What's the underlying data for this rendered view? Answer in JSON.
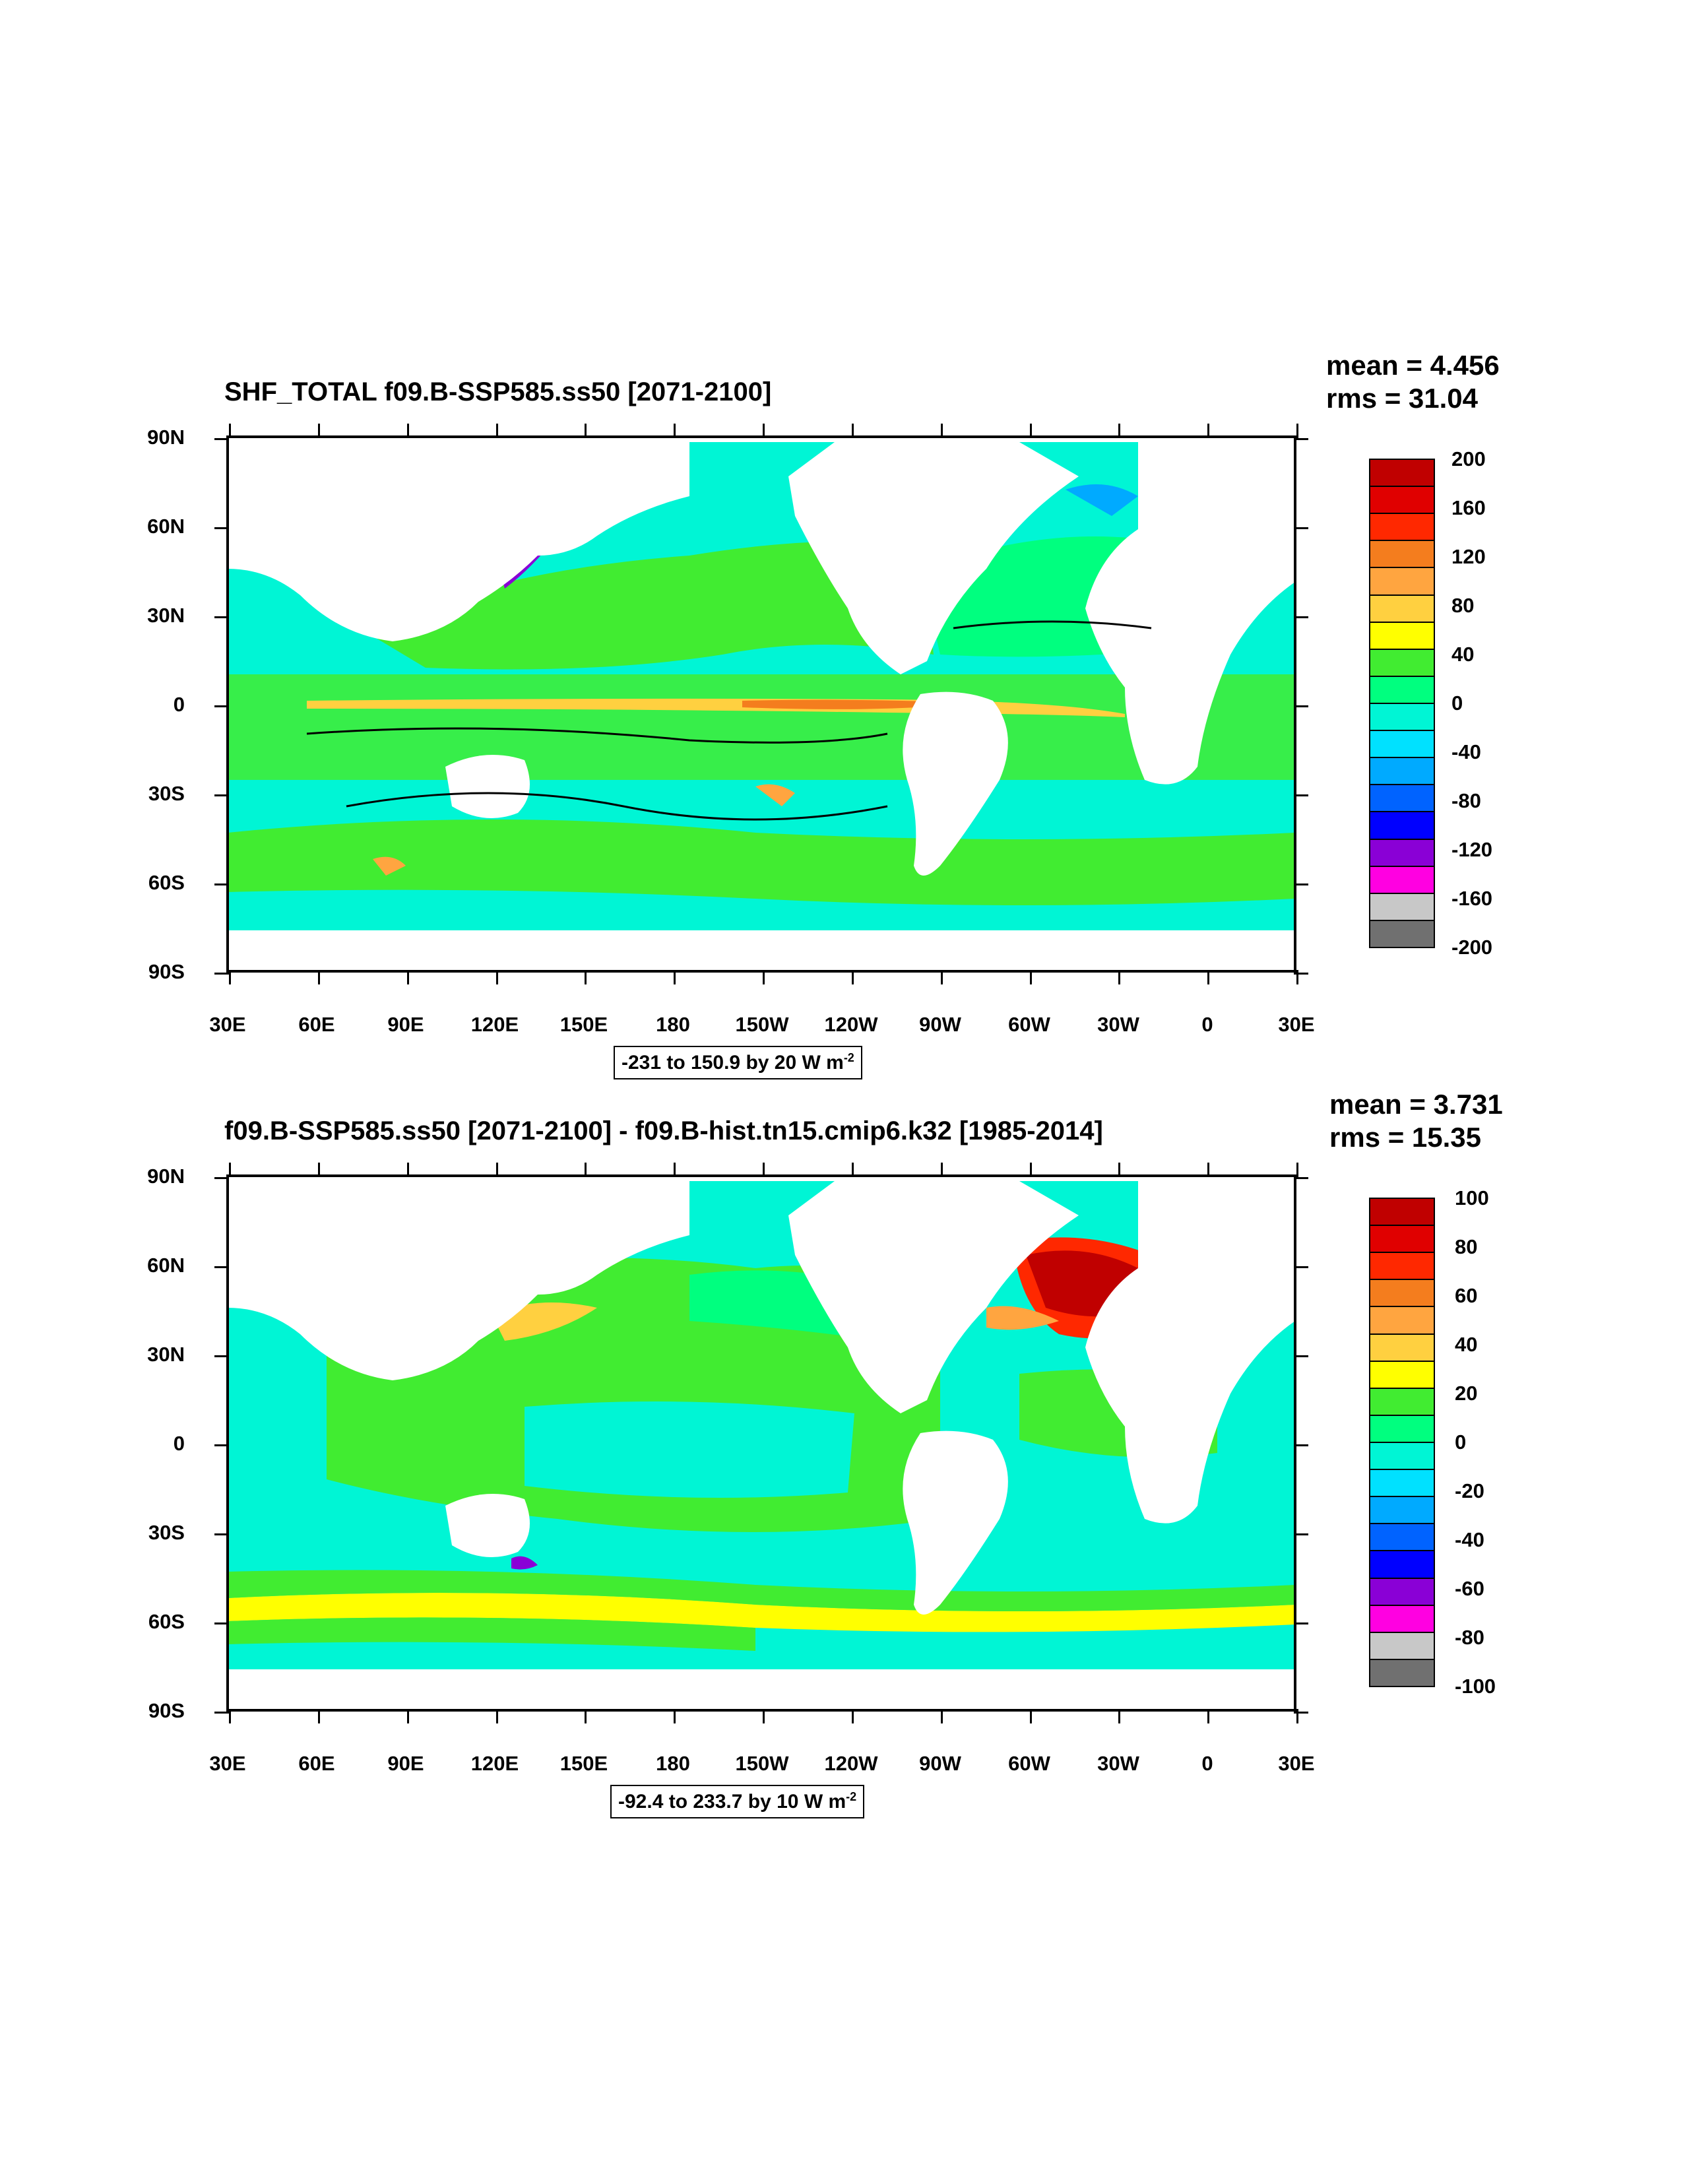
{
  "panels": [
    {
      "id": "top",
      "title": "SHF_TOTAL f09.B-SSP585.ss50 [2071-2100]",
      "mean": "mean = 4.456",
      "rms": "rms = 31.04",
      "range_info": "-231 to 150.9 by 20  W m",
      "range_exp": "-2",
      "y_ticks": [
        "90N",
        "60N",
        "30N",
        "0",
        "30S",
        "60S",
        "90S"
      ],
      "x_ticks": [
        "30E",
        "60E",
        "90E",
        "120E",
        "150E",
        "180",
        "150W",
        "120W",
        "90W",
        "60W",
        "30W",
        "0",
        "30E"
      ],
      "colorbar_labels": [
        "200",
        "160",
        "120",
        "80",
        "40",
        "0",
        "-40",
        "-80",
        "-120",
        "-160",
        "-200"
      ],
      "colorbar_colors": [
        "#c00000",
        "#e00000",
        "#ff2800",
        "#f47d1e",
        "#ffa540",
        "#ffd040",
        "#ffff00",
        "#41ec31",
        "#00ff7f",
        "#00f5d5",
        "#00e1ff",
        "#00aaff",
        "#0063ff",
        "#0000ff",
        "#8a00d6",
        "#ff00e1",
        "#c8c8c8",
        "#707070"
      ]
    },
    {
      "id": "bottom",
      "title": "f09.B-SSP585.ss50 [2071-2100] - f09.B-hist.tn15.cmip6.k32 [1985-2014]",
      "mean": "mean = 3.731",
      "rms": "rms = 15.35",
      "range_info": "-92.4 to 233.7 by 10  W m",
      "range_exp": "-2",
      "y_ticks": [
        "90N",
        "60N",
        "30N",
        "0",
        "30S",
        "60S",
        "90S"
      ],
      "x_ticks": [
        "30E",
        "60E",
        "90E",
        "120E",
        "150E",
        "180",
        "150W",
        "120W",
        "90W",
        "60W",
        "30W",
        "0",
        "30E"
      ],
      "colorbar_labels": [
        "100",
        "80",
        "60",
        "40",
        "20",
        "0",
        "-20",
        "-40",
        "-60",
        "-80",
        "-100"
      ],
      "colorbar_colors": [
        "#c00000",
        "#e00000",
        "#ff2800",
        "#f47d1e",
        "#ffa540",
        "#ffd040",
        "#ffff00",
        "#41ec31",
        "#00ff7f",
        "#00f5d5",
        "#00e1ff",
        "#00aaff",
        "#0063ff",
        "#0000ff",
        "#8a00d6",
        "#ff00e1",
        "#c8c8c8",
        "#707070"
      ]
    }
  ],
  "colors": {
    "ocean_base": "#00f5d5",
    "ocean_green": "#41ec31",
    "ocean_light": "#00ff7f",
    "land": "#ffffff",
    "frame": "#000000"
  }
}
